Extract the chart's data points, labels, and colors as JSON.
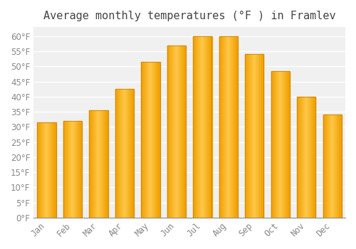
{
  "title": "Average monthly temperatures (°F ) in Framlev",
  "months": [
    "Jan",
    "Feb",
    "Mar",
    "Apr",
    "May",
    "Jun",
    "Jul",
    "Aug",
    "Sep",
    "Oct",
    "Nov",
    "Dec"
  ],
  "values": [
    31.5,
    32.0,
    35.5,
    42.5,
    51.5,
    57.0,
    60.0,
    60.0,
    54.0,
    48.5,
    40.0,
    34.0
  ],
  "bar_color_center": "#FFC84A",
  "bar_color_edge": "#F0A000",
  "background_color": "#ffffff",
  "plot_bg_color": "#f0f0f0",
  "grid_color": "#ffffff",
  "ylim": [
    0,
    63
  ],
  "yticks": [
    0,
    5,
    10,
    15,
    20,
    25,
    30,
    35,
    40,
    45,
    50,
    55,
    60
  ],
  "title_fontsize": 11,
  "tick_fontsize": 8.5,
  "tick_color": "#888888",
  "title_color": "#444444"
}
